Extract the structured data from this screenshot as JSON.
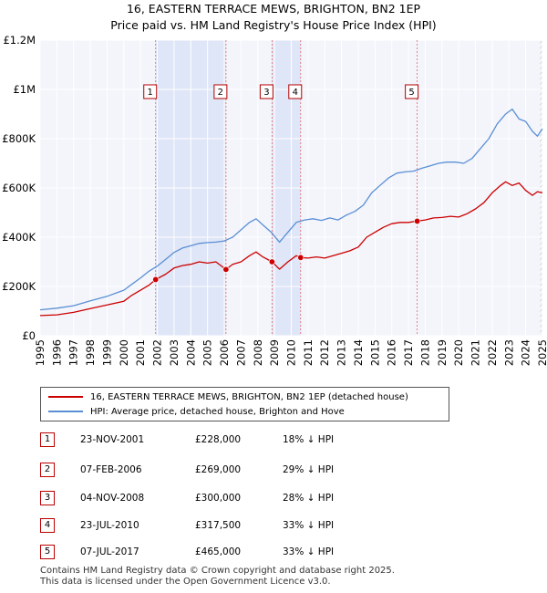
{
  "title_line1": "16, EASTERN TERRACE MEWS, BRIGHTON, BN2 1EP",
  "title_line2": "Price paid vs. HM Land Registry's House Price Index (HPI)",
  "chart_data": {
    "type": "line",
    "title": "16, EASTERN TERRACE MEWS, BRIGHTON, BN2 1EP — Price paid vs. HM Land Registry's House Price Index (HPI)",
    "xlim": [
      1995,
      2025
    ],
    "ylim": [
      0,
      1200000
    ],
    "y_ticks": [
      {
        "value": 0,
        "label": "£0"
      },
      {
        "value": 200000,
        "label": "£200K"
      },
      {
        "value": 400000,
        "label": "£400K"
      },
      {
        "value": 600000,
        "label": "£600K"
      },
      {
        "value": 800000,
        "label": "£800K"
      },
      {
        "value": 1000000,
        "label": "£1M"
      },
      {
        "value": 1200000,
        "label": "£1.2M"
      }
    ],
    "x_ticks": [
      "1995",
      "1996",
      "1997",
      "1998",
      "1999",
      "2000",
      "2001",
      "2002",
      "2003",
      "2004",
      "2005",
      "2006",
      "2007",
      "2008",
      "2009",
      "2010",
      "2011",
      "2012",
      "2013",
      "2014",
      "2015",
      "2016",
      "2017",
      "2018",
      "2019",
      "2020",
      "2021",
      "2022",
      "2023",
      "2024",
      "2025"
    ],
    "grid": true,
    "series": [
      {
        "name": "16, EASTERN TERRACE MEWS, BRIGHTON, BN2 1EP (detached house)",
        "color": "#cc0000",
        "x": [
          1995.0,
          1996.0,
          1997.0,
          1998.0,
          1999.0,
          2000.0,
          2000.5,
          2001.0,
          2001.5,
          2001.9,
          2002.5,
          2003.0,
          2003.5,
          2004.0,
          2004.5,
          2005.0,
          2005.5,
          2006.1,
          2006.5,
          2007.0,
          2007.5,
          2007.9,
          2008.3,
          2008.85,
          2009.3,
          2009.8,
          2010.3,
          2010.56,
          2011.0,
          2011.5,
          2012.0,
          2012.5,
          2013.0,
          2013.5,
          2014.0,
          2014.5,
          2015.0,
          2015.5,
          2016.0,
          2016.5,
          2017.0,
          2017.5,
          2018.0,
          2018.5,
          2019.0,
          2019.5,
          2020.0,
          2020.5,
          2021.0,
          2021.5,
          2022.0,
          2022.5,
          2022.8,
          2023.2,
          2023.6,
          2024.0,
          2024.4,
          2024.7,
          2025.0
        ],
        "y": [
          82000,
          85000,
          95000,
          110000,
          125000,
          140000,
          165000,
          185000,
          205000,
          228000,
          250000,
          275000,
          285000,
          290000,
          300000,
          295000,
          300000,
          269000,
          290000,
          300000,
          325000,
          340000,
          320000,
          300000,
          270000,
          300000,
          325000,
          317500,
          315000,
          320000,
          315000,
          325000,
          335000,
          345000,
          360000,
          400000,
          420000,
          440000,
          455000,
          460000,
          460000,
          465000,
          470000,
          478000,
          480000,
          485000,
          482000,
          495000,
          515000,
          540000,
          580000,
          610000,
          625000,
          610000,
          620000,
          590000,
          570000,
          585000,
          580000
        ]
      },
      {
        "name": "HPI: Average price, detached house, Brighton and Hove",
        "color": "#5b8fd4",
        "x": [
          1995.0,
          1996.0,
          1997.0,
          1998.0,
          1999.0,
          2000.0,
          2000.5,
          2001.0,
          2001.5,
          2002.0,
          2002.5,
          2003.0,
          2003.5,
          2004.0,
          2004.5,
          2005.0,
          2005.5,
          2006.0,
          2006.5,
          2007.0,
          2007.5,
          2007.9,
          2008.3,
          2008.8,
          2009.3,
          2009.8,
          2010.3,
          2010.8,
          2011.3,
          2011.8,
          2012.3,
          2012.8,
          2013.3,
          2013.8,
          2014.3,
          2014.8,
          2015.3,
          2015.8,
          2016.3,
          2016.8,
          2017.3,
          2017.8,
          2018.3,
          2018.8,
          2019.3,
          2019.8,
          2020.3,
          2020.8,
          2021.3,
          2021.8,
          2022.3,
          2022.8,
          2023.2,
          2023.6,
          2024.0,
          2024.4,
          2024.7,
          2025.0
        ],
        "y": [
          105000,
          112000,
          122000,
          142000,
          160000,
          185000,
          210000,
          235000,
          262000,
          283000,
          310000,
          338000,
          356000,
          365000,
          375000,
          378000,
          380000,
          385000,
          400000,
          430000,
          460000,
          475000,
          450000,
          420000,
          380000,
          420000,
          460000,
          470000,
          475000,
          468000,
          478000,
          470000,
          490000,
          505000,
          530000,
          580000,
          610000,
          640000,
          660000,
          665000,
          668000,
          680000,
          690000,
          700000,
          705000,
          705000,
          700000,
          720000,
          760000,
          800000,
          860000,
          900000,
          920000,
          880000,
          870000,
          830000,
          810000,
          840000
        ]
      }
    ],
    "sales": [
      {
        "num": "1",
        "date": "23-NOV-2001",
        "x": 2001.9,
        "price": 228000
      },
      {
        "num": "2",
        "date": "07-FEB-2006",
        "x": 2006.1,
        "price": 269000
      },
      {
        "num": "3",
        "date": "04-NOV-2008",
        "x": 2008.85,
        "price": 300000
      },
      {
        "num": "4",
        "date": "23-JUL-2010",
        "x": 2010.56,
        "price": 317500
      },
      {
        "num": "5",
        "date": "07-JUL-2017",
        "x": 2017.52,
        "price": 465000
      }
    ],
    "shaded_periods": [
      [
        2001.9,
        2006.1
      ],
      [
        2008.85,
        2010.56
      ]
    ],
    "hatched_region": [
      2024.85,
      2025.0
    ]
  },
  "legend": {
    "property_label": "16, EASTERN TERRACE MEWS, BRIGHTON, BN2 1EP (detached house)",
    "hpi_label": "HPI: Average price, detached house, Brighton and Hove",
    "property_color": "#cc0000",
    "hpi_color": "#5b8fd4"
  },
  "transactions": [
    {
      "num": "1",
      "date": "23-NOV-2001",
      "price": "£228,000",
      "hpi": "18% ↓ HPI"
    },
    {
      "num": "2",
      "date": "07-FEB-2006",
      "price": "£269,000",
      "hpi": "29% ↓ HPI"
    },
    {
      "num": "3",
      "date": "04-NOV-2008",
      "price": "£300,000",
      "hpi": "28% ↓ HPI"
    },
    {
      "num": "4",
      "date": "23-JUL-2010",
      "price": "£317,500",
      "hpi": "33% ↓ HPI"
    },
    {
      "num": "5",
      "date": "07-JUL-2017",
      "price": "£465,000",
      "hpi": "33% ↓ HPI"
    }
  ],
  "footer_line1": "Contains HM Land Registry data © Crown copyright and database right 2025.",
  "footer_line2": "This data is licensed under the Open Government Licence v3.0."
}
